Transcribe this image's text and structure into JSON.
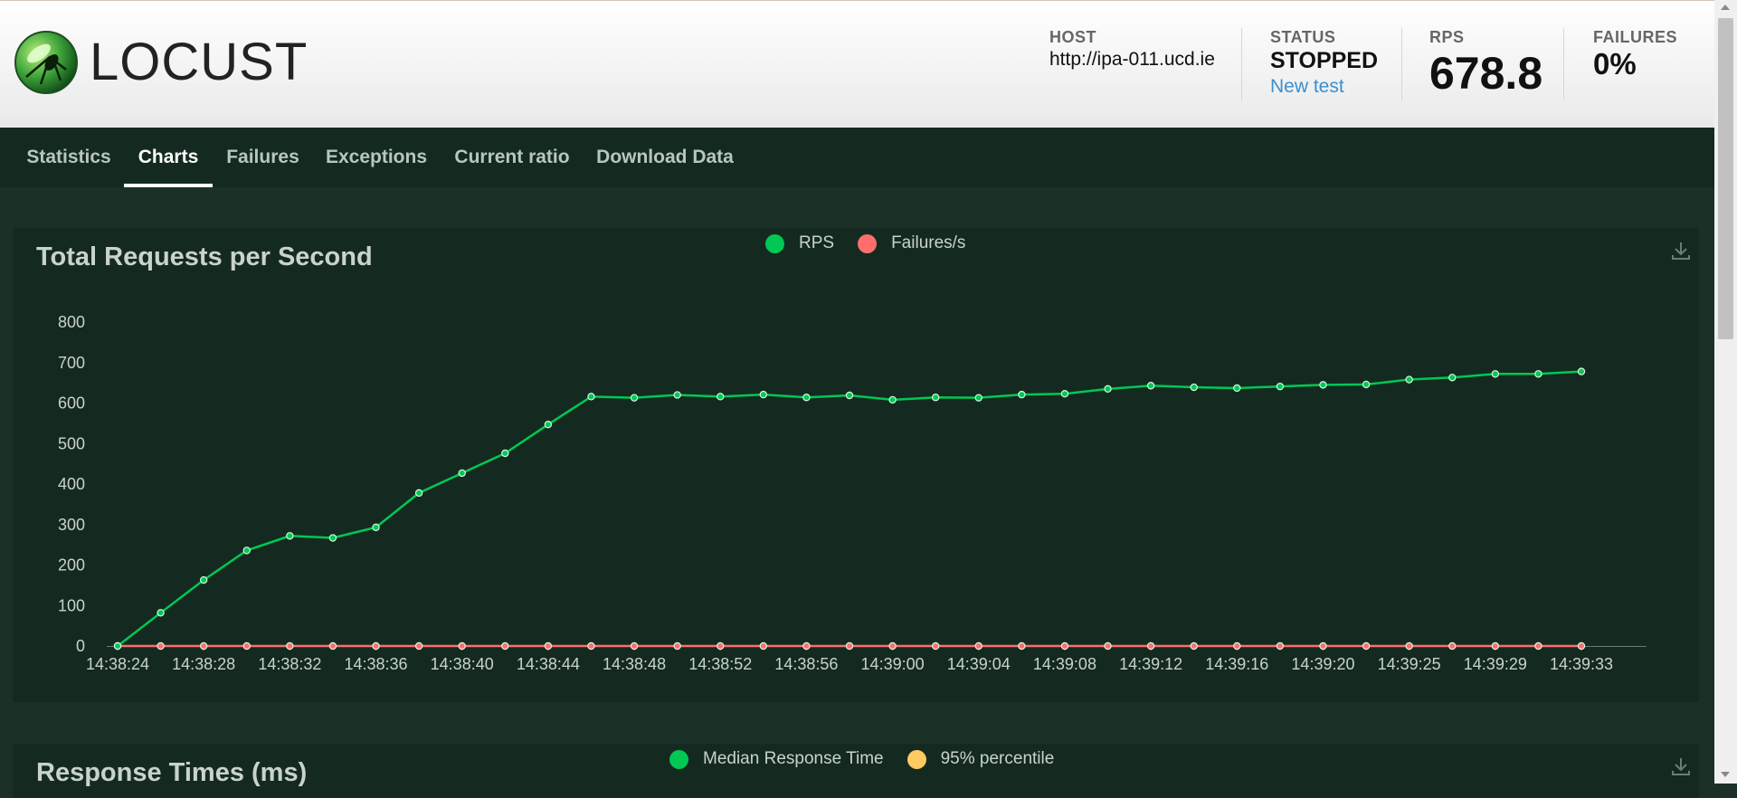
{
  "app": {
    "logo_text": "LOCUST"
  },
  "stats": {
    "host": {
      "label": "HOST",
      "value": "http://ipa-011.ucd.ie"
    },
    "status": {
      "label": "STATUS",
      "value": "STOPPED",
      "link": "New test"
    },
    "rps": {
      "label": "RPS",
      "value": "678.8"
    },
    "failures": {
      "label": "FAILURES",
      "value": "0%"
    }
  },
  "tabs": [
    {
      "label": "Statistics"
    },
    {
      "label": "Charts"
    },
    {
      "label": "Failures"
    },
    {
      "label": "Exceptions"
    },
    {
      "label": "Current ratio"
    },
    {
      "label": "Download Data"
    }
  ],
  "active_tab": "Charts",
  "colors": {
    "rps": "#00c853",
    "failures": "#ff6d6d",
    "median": "#00c853",
    "p95": "#ffca5f"
  },
  "chart_data": [
    {
      "type": "line",
      "title": "Total Requests per Second",
      "x": [
        "14:38:24",
        "14:38:26",
        "14:38:28",
        "14:38:30",
        "14:38:32",
        "14:38:34",
        "14:38:36",
        "14:38:38",
        "14:38:40",
        "14:38:42",
        "14:38:44",
        "14:38:46",
        "14:38:48",
        "14:38:50",
        "14:38:52",
        "14:38:54",
        "14:38:56",
        "14:38:58",
        "14:39:00",
        "14:39:02",
        "14:39:04",
        "14:39:06",
        "14:39:08",
        "14:39:10",
        "14:39:12",
        "14:39:14",
        "14:39:16",
        "14:39:18",
        "14:39:20",
        "14:39:22",
        "14:39:25",
        "14:39:27",
        "14:39:29",
        "14:39:31",
        "14:39:33"
      ],
      "tick_labels": [
        "14:38:24",
        "14:38:28",
        "14:38:32",
        "14:38:36",
        "14:38:40",
        "14:38:44",
        "14:38:48",
        "14:38:52",
        "14:38:56",
        "14:39:00",
        "14:39:04",
        "14:39:08",
        "14:39:12",
        "14:39:16",
        "14:39:20",
        "14:39:25",
        "14:39:29",
        "14:39:33"
      ],
      "series": [
        {
          "name": "RPS",
          "values": [
            0,
            82,
            163,
            236,
            272,
            267,
            293,
            378,
            427,
            476,
            547,
            616,
            613,
            620,
            616,
            621,
            614,
            619,
            608,
            614,
            613,
            621,
            623,
            635,
            643,
            639,
            637,
            641,
            645,
            646,
            658,
            663,
            672,
            672,
            678
          ]
        },
        {
          "name": "Failures/s",
          "values": [
            0,
            0,
            0,
            0,
            0,
            0,
            0,
            0,
            0,
            0,
            0,
            0,
            0,
            0,
            0,
            0,
            0,
            0,
            0,
            0,
            0,
            0,
            0,
            0,
            0,
            0,
            0,
            0,
            0,
            0,
            0,
            0,
            0,
            0,
            0
          ]
        }
      ],
      "y_ticks": [
        "0",
        "100",
        "200",
        "300",
        "400",
        "500",
        "600",
        "700",
        "800"
      ],
      "ylim": [
        0,
        800
      ],
      "legend": "top-center",
      "grid": false
    },
    {
      "type": "line",
      "title": "Response Times (ms)",
      "series": [
        {
          "name": "Median Response Time"
        },
        {
          "name": "95% percentile"
        }
      ],
      "legend": "top-center"
    }
  ]
}
